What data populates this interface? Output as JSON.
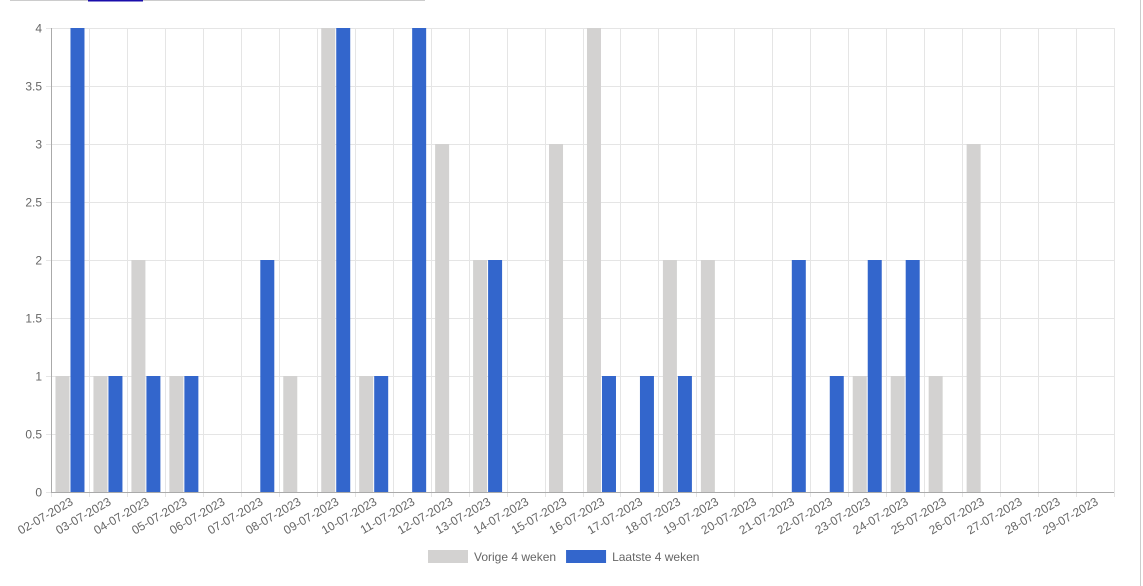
{
  "chart_data": {
    "type": "bar",
    "categories": [
      "02-07-2023",
      "03-07-2023",
      "04-07-2023",
      "05-07-2023",
      "06-07-2023",
      "07-07-2023",
      "08-07-2023",
      "09-07-2023",
      "10-07-2023",
      "11-07-2023",
      "12-07-2023",
      "13-07-2023",
      "14-07-2023",
      "15-07-2023",
      "16-07-2023",
      "17-07-2023",
      "18-07-2023",
      "19-07-2023",
      "20-07-2023",
      "21-07-2023",
      "22-07-2023",
      "23-07-2023",
      "24-07-2023",
      "25-07-2023",
      "26-07-2023",
      "27-07-2023",
      "28-07-2023",
      "29-07-2023"
    ],
    "series": [
      {
        "name": "Vorige 4 weken",
        "color": "#d3d2d1",
        "values": [
          1,
          1,
          2,
          1,
          0,
          0,
          1,
          4,
          1,
          0,
          3,
          2,
          0,
          3,
          4,
          0,
          2,
          2,
          0,
          0,
          0,
          1,
          1,
          1,
          3,
          0,
          0,
          0
        ]
      },
      {
        "name": "Laatste 4 weken",
        "color": "#3366cc",
        "values": [
          4,
          1,
          1,
          1,
          0,
          2,
          0,
          4,
          1,
          4,
          0,
          2,
          0,
          0,
          1,
          1,
          1,
          0,
          0,
          2,
          1,
          2,
          2,
          0,
          0,
          0,
          0,
          0
        ]
      }
    ],
    "ylim": [
      0,
      4
    ],
    "yticks": [
      0,
      0.5,
      1,
      1.5,
      2,
      2.5,
      3,
      3.5,
      4
    ],
    "grid": true,
    "legend": "bottom"
  }
}
